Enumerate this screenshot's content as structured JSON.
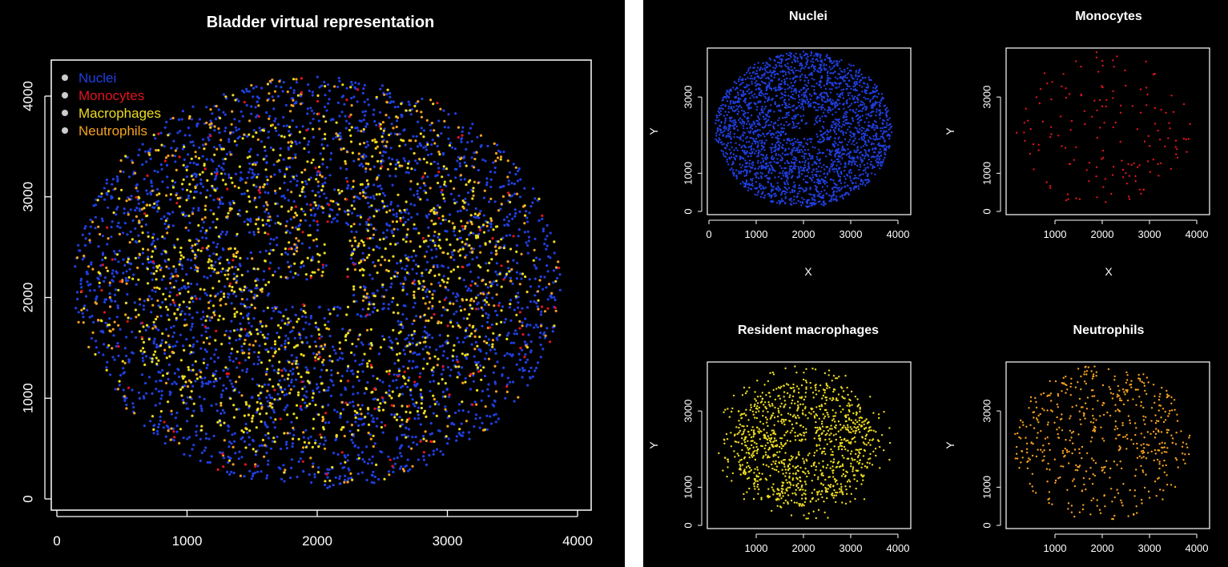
{
  "colors": {
    "background": "#000000",
    "foreground": "#ffffff",
    "nuclei": "#1f3fe0",
    "monocytes": "#e0141e",
    "macrophages": "#eedc1e",
    "neutrophils": "#f5a020"
  },
  "chart_data": [
    {
      "type": "scatter",
      "title": "Bladder virtual representation",
      "xlabel": "",
      "ylabel": "",
      "xlim": [
        0,
        4000
      ],
      "ylim": [
        0,
        4200
      ],
      "xticks": [
        "0",
        "1000",
        "2000",
        "3000",
        "4000"
      ],
      "yticks": [
        "0",
        "1000",
        "2000",
        "3000",
        "4000"
      ],
      "grid": false,
      "legend": "top-left",
      "series": [
        {
          "name": "Nuclei",
          "color": "#1f3fe0"
        },
        {
          "name": "Monocytes",
          "color": "#e0141e"
        },
        {
          "name": "Macrophages",
          "color": "#eedc1e"
        },
        {
          "name": "Neutrophils",
          "color": "#f5a020"
        }
      ]
    },
    {
      "type": "scatter",
      "title": "Nuclei",
      "xlabel": "X",
      "ylabel": "Y",
      "xlim": [
        0,
        4000
      ],
      "ylim": [
        0,
        4200
      ],
      "xticks": [
        "0",
        "1000",
        "2000",
        "3000",
        "4000"
      ],
      "yticks": [
        "0",
        "1000",
        "3000"
      ],
      "color": "#1f3fe0"
    },
    {
      "type": "scatter",
      "title": "Monocytes",
      "xlabel": "X",
      "ylabel": "Y",
      "xlim": [
        0,
        4000
      ],
      "ylim": [
        0,
        4200
      ],
      "xticks": [
        "1000",
        "2000",
        "3000",
        "4000"
      ],
      "yticks": [
        "0",
        "1000",
        "3000"
      ],
      "color": "#e0141e"
    },
    {
      "type": "scatter",
      "title": "Resident macrophages",
      "xlabel": "",
      "ylabel": "Y",
      "xlim": [
        0,
        4000
      ],
      "ylim": [
        0,
        4200
      ],
      "xticks": [
        "1000",
        "2000",
        "3000",
        "4000"
      ],
      "yticks": [
        "0",
        "1000",
        "3000"
      ],
      "color": "#eedc1e"
    },
    {
      "type": "scatter",
      "title": "Neutrophils",
      "xlabel": "",
      "ylabel": "Y",
      "xlim": [
        0,
        4000
      ],
      "ylim": [
        0,
        4200
      ],
      "xticks": [
        "1000",
        "2000",
        "3000",
        "4000"
      ],
      "yticks": [
        "0",
        "1000",
        "3000"
      ],
      "color": "#f5a020"
    }
  ]
}
